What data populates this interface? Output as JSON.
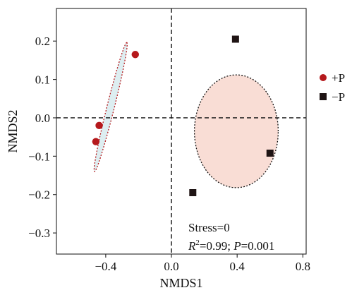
{
  "chart_data": {
    "type": "scatter",
    "xlabel": "NMDS1",
    "ylabel": "NMDS2",
    "xlim": [
      -0.7,
      0.82
    ],
    "ylim": [
      -0.355,
      0.285
    ],
    "x_ticks": [
      -0.4,
      0.0,
      0.4,
      0.8
    ],
    "x_tick_labels": [
      "−0.4",
      "0.0",
      "0.4",
      "0.8"
    ],
    "y_ticks": [
      -0.3,
      -0.2,
      -0.1,
      0.0,
      0.1,
      0.2
    ],
    "y_tick_labels": [
      "−0.3",
      "−0.2",
      "−0.1",
      "0.0",
      "0.1",
      "0.2"
    ],
    "grid": false,
    "reference_lines": {
      "x": 0.0,
      "y": 0.0,
      "style": "dashed"
    },
    "legend_position": "right",
    "series": [
      {
        "name": "+P",
        "marker": "circle",
        "color": "#b5191c",
        "ellipse_fill": "#ddeef1",
        "ellipse_stroke": "#b5191c",
        "points": [
          {
            "x": -0.22,
            "y": 0.165
          },
          {
            "x": -0.44,
            "y": -0.02
          },
          {
            "x": -0.46,
            "y": -0.062
          }
        ],
        "ellipse": {
          "cx": -0.37,
          "cy": 0.028,
          "rx": 0.195,
          "ry": 0.02,
          "angle_deg": 59.4
        }
      },
      {
        "name": "−P",
        "marker": "square",
        "color": "#1f1414",
        "ellipse_fill": "#f9ddd5",
        "ellipse_stroke": "#111111",
        "points": [
          {
            "x": 0.39,
            "y": 0.205
          },
          {
            "x": 0.6,
            "y": -0.092
          },
          {
            "x": 0.13,
            "y": -0.195
          }
        ],
        "ellipse": {
          "cx": 0.395,
          "cy": -0.035,
          "rx": 0.255,
          "ry": 0.147,
          "angle_deg": 0
        }
      }
    ],
    "annotations": {
      "stress": "Stress=0",
      "r_symbol": "R",
      "r_superscript": "2",
      "r_value": "=0.99; ",
      "p_symbol": "P",
      "p_value": "=0.001"
    }
  }
}
